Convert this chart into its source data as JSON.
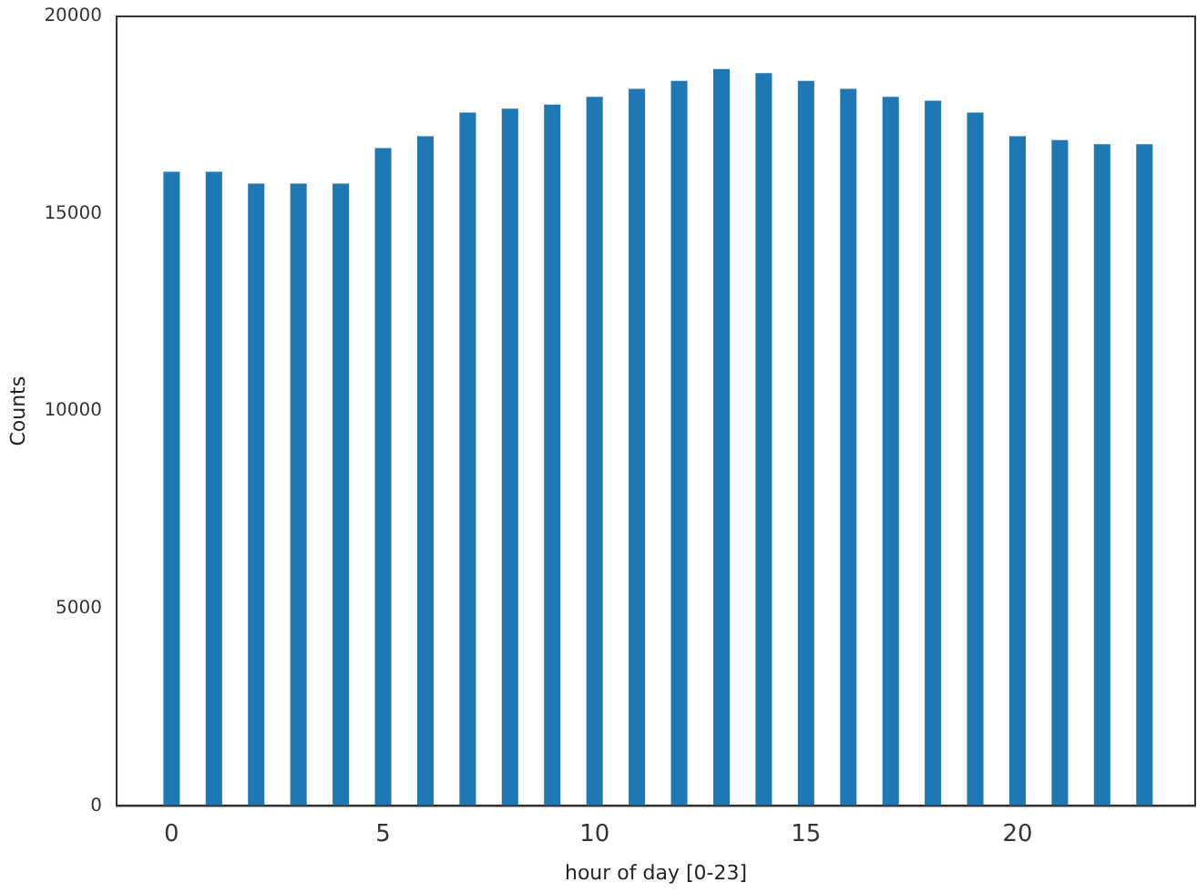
{
  "chart_data": {
    "type": "bar",
    "xlabel": "hour of day [0-23]",
    "ylabel": "Counts",
    "x": [
      0,
      1,
      2,
      3,
      4,
      5,
      6,
      7,
      8,
      9,
      10,
      11,
      12,
      13,
      14,
      15,
      16,
      17,
      18,
      19,
      20,
      21,
      22,
      23
    ],
    "values": [
      16050,
      16050,
      15750,
      15750,
      15750,
      16650,
      16950,
      17550,
      17650,
      17750,
      17950,
      18150,
      18350,
      18650,
      18550,
      18350,
      18150,
      17950,
      17850,
      17550,
      16950,
      16850,
      16750,
      16750
    ],
    "color": "#1f77b4",
    "xlim": [
      -1.3,
      24.2
    ],
    "xticks": [
      0,
      5,
      10,
      15,
      20
    ],
    "ylim": [
      0,
      20000
    ],
    "yticks": [
      0,
      5000,
      10000,
      15000,
      20000
    ],
    "grid": false,
    "legend": false
  }
}
